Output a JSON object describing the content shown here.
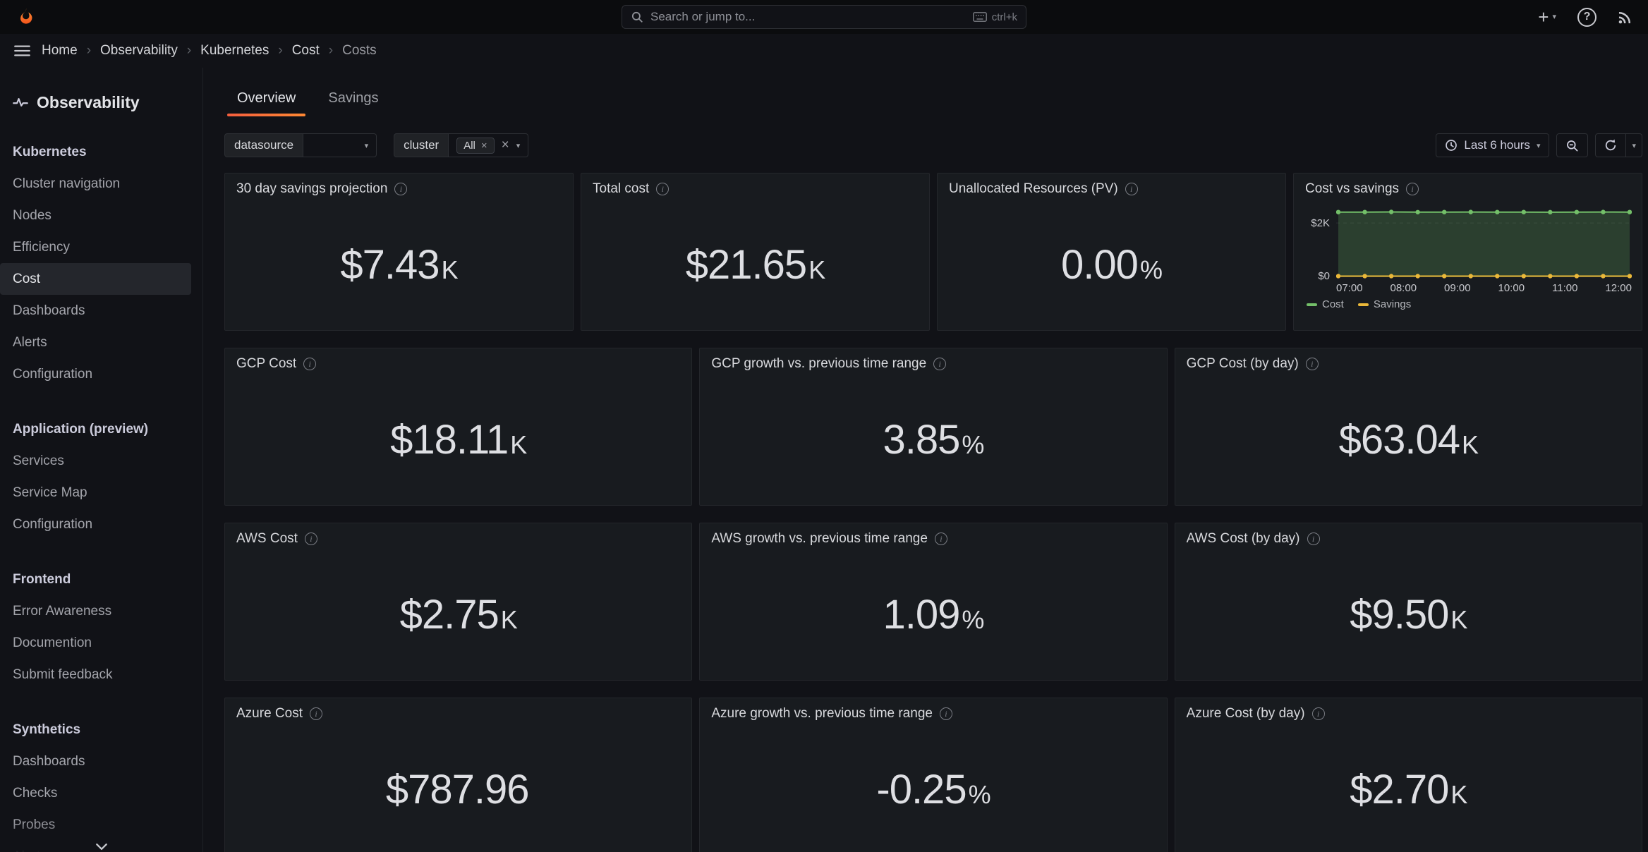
{
  "topbar": {
    "search_placeholder": "Search or jump to...",
    "shortcut_label": "ctrl+k"
  },
  "breadcrumb": [
    "Home",
    "Observability",
    "Kubernetes",
    "Cost",
    "Costs"
  ],
  "sidebar": {
    "header": "Observability",
    "active_item": "Cost",
    "sections": [
      {
        "title": "Kubernetes",
        "items": [
          "Cluster navigation",
          "Nodes",
          "Efficiency",
          "Cost",
          "Dashboards",
          "Alerts",
          "Configuration"
        ]
      },
      {
        "title": "Application (preview)",
        "items": [
          "Services",
          "Service Map",
          "Configuration"
        ]
      },
      {
        "title": "Frontend",
        "items": [
          "Error Awareness",
          "Documention",
          "Submit feedback"
        ]
      },
      {
        "title": "Synthetics",
        "items": [
          "Dashboards",
          "Checks",
          "Probes",
          "Alerts"
        ]
      }
    ]
  },
  "tabs": [
    {
      "label": "Overview"
    },
    {
      "label": "Savings"
    }
  ],
  "filters": {
    "datasource": {
      "label": "datasource",
      "value": ""
    },
    "cluster": {
      "label": "cluster",
      "selected": "All"
    }
  },
  "toolbar": {
    "time_range": "Last 6 hours"
  },
  "panels": [
    {
      "title": "30 day savings projection",
      "value": "$7.43",
      "suffix": "K"
    },
    {
      "title": "Total cost",
      "value": "$21.65",
      "suffix": "K"
    },
    {
      "title": "Unallocated Resources (PV)",
      "value": "0.00",
      "suffix": "%"
    },
    {
      "title": "GCP Cost",
      "value": "$18.11",
      "suffix": "K"
    },
    {
      "title": "GCP growth vs. previous time range",
      "value": "3.85",
      "suffix": "%"
    },
    {
      "title": "GCP Cost (by day)",
      "value": "$63.04",
      "suffix": "K"
    },
    {
      "title": "AWS Cost",
      "value": "$2.75",
      "suffix": "K"
    },
    {
      "title": "AWS growth vs. previous time range",
      "value": "1.09",
      "suffix": "%"
    },
    {
      "title": "AWS Cost (by day)",
      "value": "$9.50",
      "suffix": "K"
    },
    {
      "title": "Azure Cost",
      "value": "$787.96",
      "suffix": ""
    },
    {
      "title": "Azure growth vs. previous time range",
      "value": "-0.25",
      "suffix": "%"
    },
    {
      "title": "Azure Cost (by day)",
      "value": "$2.70",
      "suffix": "K"
    }
  ],
  "chart_data": {
    "type": "area",
    "title": "Cost vs savings",
    "x_ticks": [
      "07:00",
      "08:00",
      "09:00",
      "10:00",
      "11:00",
      "12:00"
    ],
    "y_ticks": [
      "$0",
      "$2K"
    ],
    "ylim": [
      0,
      2600
    ],
    "gridlines": [
      2000
    ],
    "legend_position": "bottom-left",
    "series": [
      {
        "name": "Cost",
        "color": "#73BF69",
        "fill": true,
        "values": [
          2400,
          2400,
          2405,
          2398,
          2400,
          2402,
          2400,
          2400,
          2396,
          2400,
          2402,
          2400
        ]
      },
      {
        "name": "Savings",
        "color": "#EAB839",
        "fill": false,
        "values": [
          40,
          40,
          40,
          40,
          40,
          40,
          40,
          40,
          40,
          40,
          40,
          40
        ]
      }
    ]
  },
  "colors": {
    "accent_orange": "#FF780A",
    "page_bg": "#111217",
    "panel_bg": "#181B1F",
    "cost_green": "#73BF69",
    "savings_yellow": "#EAB839"
  }
}
